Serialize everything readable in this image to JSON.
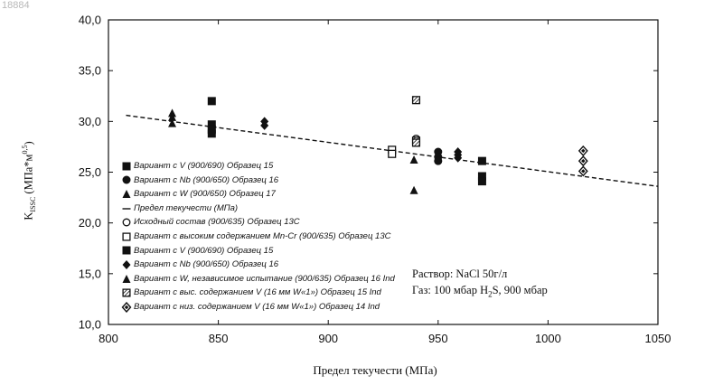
{
  "watermark": "18884",
  "chart_data": {
    "type": "scatter",
    "xlabel": "Предел текучести (МПа)",
    "ylabel": "K",
    "ylabel_sub": "ISSC",
    "ylabel_unit": "(МПа*м",
    "ylabel_sup": "0,5",
    "ylabel_close": ")",
    "xlim": [
      800,
      1050
    ],
    "ylim": [
      10.0,
      40.0
    ],
    "xticks": [
      800,
      850,
      900,
      950,
      1000,
      1050
    ],
    "yticks": [
      10.0,
      15.0,
      20.0,
      25.0,
      30.0,
      35.0,
      40.0
    ],
    "ytick_labels": [
      "10,0",
      "15,0",
      "20,0",
      "25,0",
      "30,0",
      "35,0",
      "40,0"
    ],
    "grid": false,
    "legend_position": "left",
    "trendline": {
      "name": "Предел текучести (МПа)",
      "x": [
        808,
        1050
      ],
      "y": [
        30.6,
        23.6
      ],
      "style": "dashed"
    },
    "series": [
      {
        "name": "Вариант с V (900/690) Образец 15",
        "marker": "square-filled",
        "x": [],
        "y": []
      },
      {
        "name": "Вариант с Nb (900/650) Образец 16",
        "marker": "circle-filled",
        "x": [
          950,
          950,
          950
        ],
        "y": [
          27.0,
          26.5,
          26.1
        ]
      },
      {
        "name": "Вариант с W (900/650) Образец 17",
        "marker": "triangle-filled",
        "x": [],
        "y": []
      },
      {
        "name": "Предел текучести (МПа)",
        "marker": "dash-line",
        "x": [],
        "y": []
      },
      {
        "name": "Исходный состав (900/635) Образец 13С",
        "marker": "circle-open",
        "x": [
          929,
          929,
          940,
          940
        ],
        "y": [
          27.1,
          26.9,
          28.3,
          28.0
        ]
      },
      {
        "name": "Вариант с высоким содержанием Mn-Cr (900/635) Образец 13С",
        "marker": "square-open",
        "x": [
          929,
          929
        ],
        "y": [
          27.2,
          26.8
        ]
      },
      {
        "name": "Вариант с V (900/690) Образец 15",
        "marker": "square-filled",
        "x": [
          847,
          847,
          847,
          847,
          970,
          970,
          970
        ],
        "y": [
          32.0,
          29.7,
          29.2,
          28.8,
          26.1,
          24.6,
          24.1
        ]
      },
      {
        "name": "Вариант с Nb (900/650) Образец 16",
        "marker": "diamond-filled",
        "x": [
          871,
          871,
          959,
          959,
          959
        ],
        "y": [
          30.0,
          29.6,
          27.0,
          26.7,
          26.4
        ]
      },
      {
        "name": "Вариант с W, независимое испытание (900/635) Образец 16 Ind",
        "marker": "triangle-filled",
        "x": [
          829,
          829,
          829,
          939,
          939
        ],
        "y": [
          30.8,
          30.4,
          29.8,
          26.2,
          23.2
        ]
      },
      {
        "name": "Вариант с выс. содержанием V (16 мм W«1») Образец 15 Ind",
        "marker": "square-hatched",
        "x": [
          940,
          940,
          940
        ],
        "y": [
          32.1,
          28.1,
          27.9
        ]
      },
      {
        "name": "Вариант с низ. содержанием V (16 мм W«1») Образец 14 Ind",
        "marker": "diamond-open",
        "x": [
          1016,
          1016,
          1016
        ],
        "y": [
          27.1,
          26.1,
          25.1
        ]
      }
    ],
    "annotations": [
      {
        "text": "Раствор: NaCl 50г/л"
      },
      {
        "text_parts": [
          "Газ: 100 мбар H",
          "2",
          "S, 900 мбар"
        ]
      }
    ]
  }
}
